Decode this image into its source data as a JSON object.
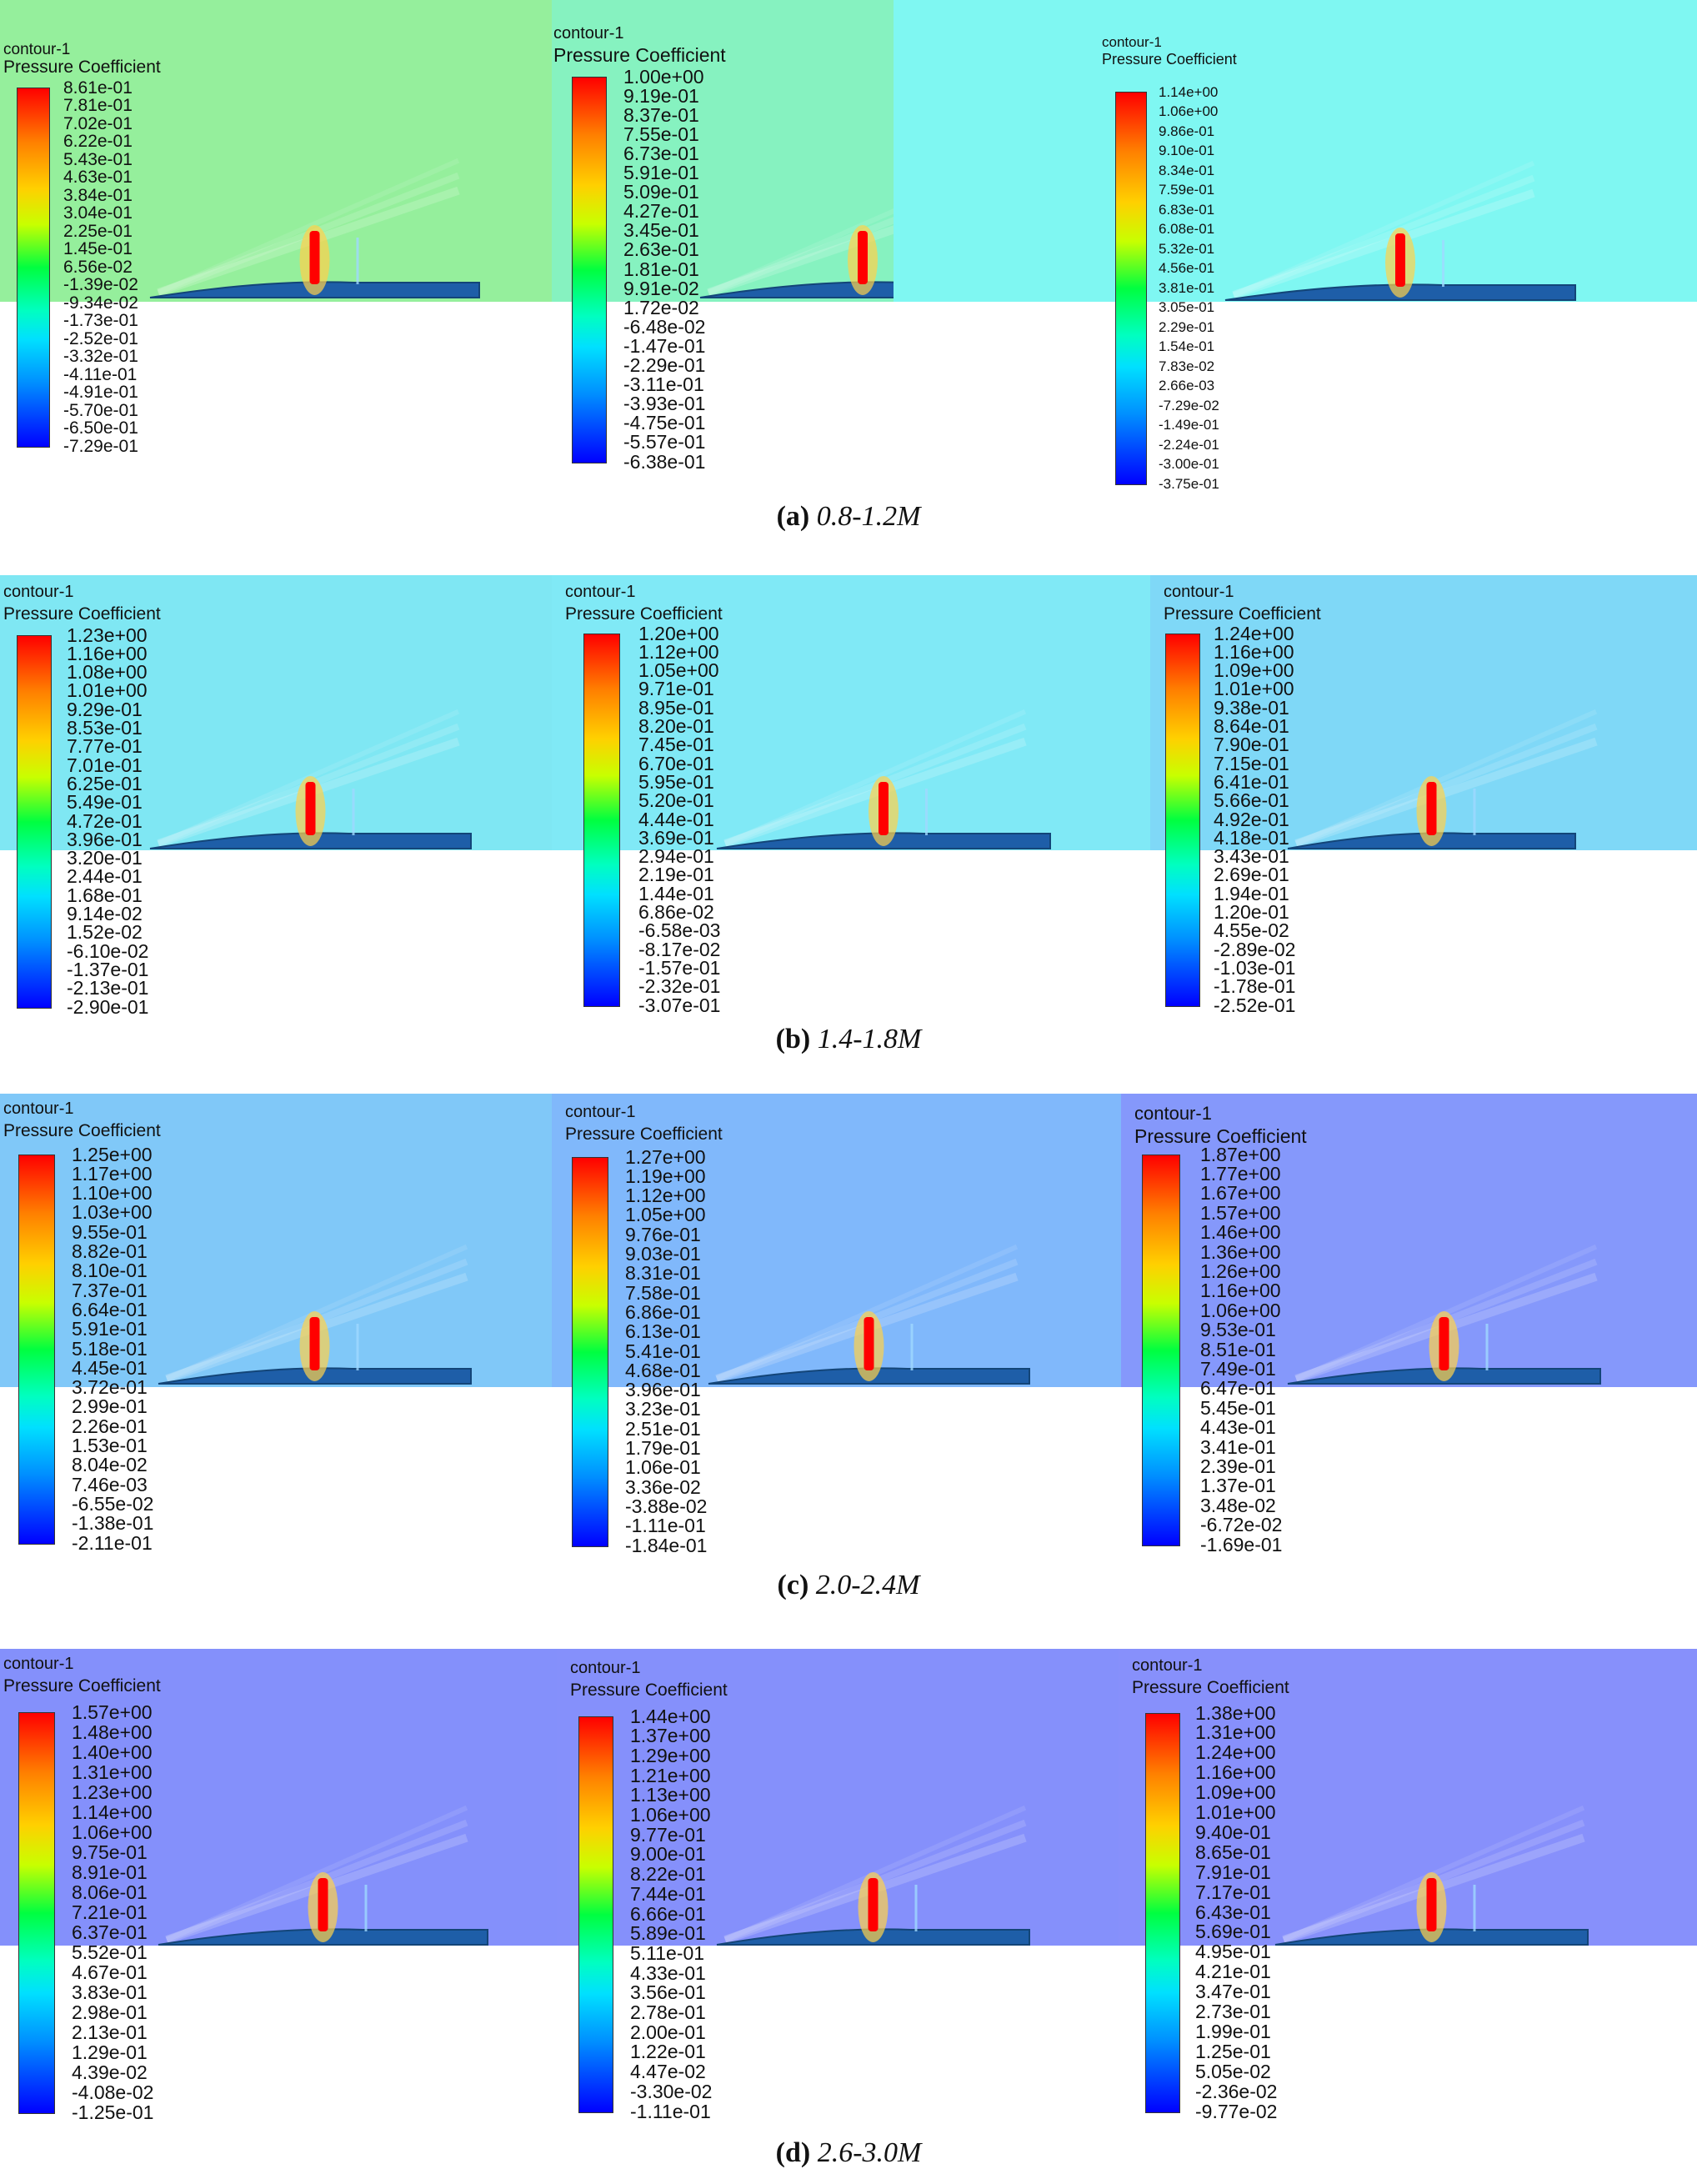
{
  "figure": {
    "rows": [
      {
        "caption_letter": "(a)",
        "caption_range": "0.8-1.2M",
        "bg": "#8ff0b0",
        "panels": [
          {
            "title": "contour-1",
            "quantity": "Pressure Coefficient",
            "bg": "#95ef9c",
            "ticks": [
              "8.61e-01",
              "7.81e-01",
              "7.02e-01",
              "6.22e-01",
              "5.43e-01",
              "4.63e-01",
              "3.84e-01",
              "3.04e-01",
              "2.25e-01",
              "1.45e-01",
              "6.56e-02",
              "-1.39e-02",
              "-9.34e-02",
              "-1.73e-01",
              "-2.52e-01",
              "-3.32e-01",
              "-4.11e-01",
              "-4.91e-01",
              "-5.70e-01",
              "-6.50e-01",
              "-7.29e-01"
            ]
          },
          {
            "title": "contour-1",
            "quantity": "Pressure Coefficient",
            "bg": "#86f2c0",
            "ticks": [
              "1.00e+00",
              "9.19e-01",
              "8.37e-01",
              "7.55e-01",
              "6.73e-01",
              "5.91e-01",
              "5.09e-01",
              "4.27e-01",
              "3.45e-01",
              "2.63e-01",
              "1.81e-01",
              "9.91e-02",
              "1.72e-02",
              "-6.48e-02",
              "-1.47e-01",
              "-2.29e-01",
              "-3.11e-01",
              "-3.93e-01",
              "-4.75e-01",
              "-5.57e-01",
              "-6.38e-01"
            ]
          },
          {
            "title": "contour-1",
            "quantity": "Pressure Coefficient",
            "bg": "#7ff7f2",
            "ticks": [
              "1.14e+00",
              "1.06e+00",
              "9.86e-01",
              "9.10e-01",
              "8.34e-01",
              "7.59e-01",
              "6.83e-01",
              "6.08e-01",
              "5.32e-01",
              "4.56e-01",
              "3.81e-01",
              "3.05e-01",
              "2.29e-01",
              "1.54e-01",
              "7.83e-02",
              "2.66e-03",
              "-7.29e-02",
              "-1.49e-01",
              "-2.24e-01",
              "-3.00e-01",
              "-3.75e-01"
            ]
          }
        ]
      },
      {
        "caption_letter": "(b)",
        "caption_range": "1.4-1.8M",
        "panels": [
          {
            "title": "contour-1",
            "quantity": "Pressure Coefficient",
            "bg": "#7fe7f3",
            "ticks": [
              "1.23e+00",
              "1.16e+00",
              "1.08e+00",
              "1.01e+00",
              "9.29e-01",
              "8.53e-01",
              "7.77e-01",
              "7.01e-01",
              "6.25e-01",
              "5.49e-01",
              "4.72e-01",
              "3.96e-01",
              "3.20e-01",
              "2.44e-01",
              "1.68e-01",
              "9.14e-02",
              "1.52e-02",
              "-6.10e-02",
              "-1.37e-01",
              "-2.13e-01",
              "-2.90e-01"
            ]
          },
          {
            "title": "contour-1",
            "quantity": "Pressure Coefficient",
            "bg": "#80e9f6",
            "ticks": [
              "1.20e+00",
              "1.12e+00",
              "1.05e+00",
              "9.71e-01",
              "8.95e-01",
              "8.20e-01",
              "7.45e-01",
              "6.70e-01",
              "5.95e-01",
              "5.20e-01",
              "4.44e-01",
              "3.69e-01",
              "2.94e-01",
              "2.19e-01",
              "1.44e-01",
              "6.86e-02",
              "-6.58e-03",
              "-8.17e-02",
              "-1.57e-01",
              "-2.32e-01",
              "-3.07e-01"
            ]
          },
          {
            "title": "contour-1",
            "quantity": "Pressure Coefficient",
            "bg": "#7fd8f7",
            "ticks": [
              "1.24e+00",
              "1.16e+00",
              "1.09e+00",
              "1.01e+00",
              "9.38e-01",
              "8.64e-01",
              "7.90e-01",
              "7.15e-01",
              "6.41e-01",
              "5.66e-01",
              "4.92e-01",
              "4.18e-01",
              "3.43e-01",
              "2.69e-01",
              "1.94e-01",
              "1.20e-01",
              "4.55e-02",
              "-2.89e-02",
              "-1.03e-01",
              "-1.78e-01",
              "-2.52e-01"
            ]
          }
        ]
      },
      {
        "caption_letter": "(c)",
        "caption_range": "2.0-2.4M",
        "panels": [
          {
            "title": "contour-1",
            "quantity": "Pressure Coefficient",
            "bg": "#80c8f8",
            "ticks": [
              "1.25e+00",
              "1.17e+00",
              "1.10e+00",
              "1.03e+00",
              "9.55e-01",
              "8.82e-01",
              "8.10e-01",
              "7.37e-01",
              "6.64e-01",
              "5.91e-01",
              "5.18e-01",
              "4.45e-01",
              "3.72e-01",
              "2.99e-01",
              "2.26e-01",
              "1.53e-01",
              "8.04e-02",
              "7.46e-03",
              "-6.55e-02",
              "-1.38e-01",
              "-2.11e-01"
            ]
          },
          {
            "title": "contour-1",
            "quantity": "Pressure Coefficient",
            "bg": "#80b8fb",
            "ticks": [
              "1.27e+00",
              "1.19e+00",
              "1.12e+00",
              "1.05e+00",
              "9.76e-01",
              "9.03e-01",
              "8.31e-01",
              "7.58e-01",
              "6.86e-01",
              "6.13e-01",
              "5.41e-01",
              "4.68e-01",
              "3.96e-01",
              "3.23e-01",
              "2.51e-01",
              "1.79e-01",
              "1.06e-01",
              "3.36e-02",
              "-3.88e-02",
              "-1.11e-01",
              "-1.84e-01"
            ]
          },
          {
            "title": "contour-1",
            "quantity": "Pressure Coefficient",
            "bg": "#8598fb",
            "ticks": [
              "1.87e+00",
              "1.77e+00",
              "1.67e+00",
              "1.57e+00",
              "1.46e+00",
              "1.36e+00",
              "1.26e+00",
              "1.16e+00",
              "1.06e+00",
              "9.53e-01",
              "8.51e-01",
              "7.49e-01",
              "6.47e-01",
              "5.45e-01",
              "4.43e-01",
              "3.41e-01",
              "2.39e-01",
              "1.37e-01",
              "3.48e-02",
              "-6.72e-02",
              "-1.69e-01"
            ]
          }
        ]
      },
      {
        "caption_letter": "(d)",
        "caption_range": "2.6-3.0M",
        "panels": [
          {
            "title": "contour-1",
            "quantity": "Pressure Coefficient",
            "bg": "#8490fb",
            "ticks": [
              "1.57e+00",
              "1.48e+00",
              "1.40e+00",
              "1.31e+00",
              "1.23e+00",
              "1.14e+00",
              "1.06e+00",
              "9.75e-01",
              "8.91e-01",
              "8.06e-01",
              "7.21e-01",
              "6.37e-01",
              "5.52e-01",
              "4.67e-01",
              "3.83e-01",
              "2.98e-01",
              "2.13e-01",
              "1.29e-01",
              "4.39e-02",
              "-4.08e-02",
              "-1.25e-01"
            ]
          },
          {
            "title": "contour-1",
            "quantity": "Pressure Coefficient",
            "bg": "#8590fb",
            "ticks": [
              "1.44e+00",
              "1.37e+00",
              "1.29e+00",
              "1.21e+00",
              "1.13e+00",
              "1.06e+00",
              "9.77e-01",
              "9.00e-01",
              "8.22e-01",
              "7.44e-01",
              "6.66e-01",
              "5.89e-01",
              "5.11e-01",
              "4.33e-01",
              "3.56e-01",
              "2.78e-01",
              "2.00e-01",
              "1.22e-01",
              "4.47e-02",
              "-3.30e-02",
              "-1.11e-01"
            ]
          },
          {
            "title": "contour-1",
            "quantity": "Pressure Coefficient",
            "bg": "#8790fb",
            "ticks": [
              "1.38e+00",
              "1.31e+00",
              "1.24e+00",
              "1.16e+00",
              "1.09e+00",
              "1.01e+00",
              "9.40e-01",
              "8.65e-01",
              "7.91e-01",
              "7.17e-01",
              "6.43e-01",
              "5.69e-01",
              "4.95e-01",
              "4.21e-01",
              "3.47e-01",
              "2.73e-01",
              "1.99e-01",
              "1.25e-01",
              "5.05e-02",
              "-2.36e-02",
              "-9.77e-02"
            ]
          }
        ]
      }
    ],
    "colors": {
      "body": "#1e5ea8",
      "jet_top": "#ff0000",
      "jet_bottom": "#0000ff"
    }
  }
}
